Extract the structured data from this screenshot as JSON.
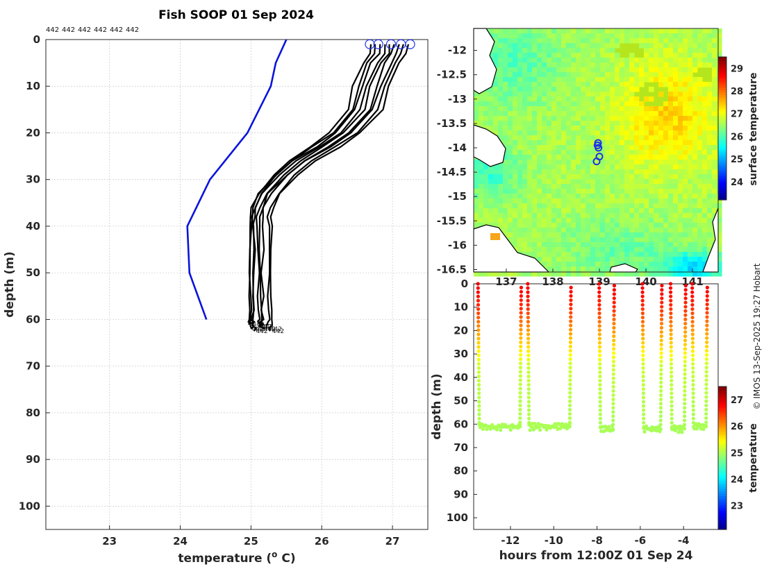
{
  "figure": {
    "title": "Fish SOOP 01 Sep 2024",
    "credit": "© IMOS 13-Sep-2025 19:27 Hobart",
    "colors": {
      "profile": "#000000",
      "climatology": "#0a14dc",
      "marker": "#1e32e6"
    }
  },
  "chart_data": [
    {
      "name": "temperature-profiles",
      "type": "line",
      "title": "Fish SOOP 01 Sep 2024",
      "xlabel": "temperature (",
      "xlabel_sup": "o",
      "xlabel_end": " C)",
      "ylabel": "depth (m)",
      "xlim": [
        22.1,
        27.5
      ],
      "ylim": [
        105,
        0
      ],
      "xticks": [
        23,
        24,
        25,
        26,
        27
      ],
      "yticks": [
        0,
        10,
        20,
        30,
        40,
        50,
        60,
        70,
        80,
        90,
        100
      ],
      "grid": true,
      "vessel_ids": [
        "442",
        "442",
        "442",
        "442",
        "442",
        "442"
      ],
      "end_label": "442",
      "climatology": {
        "depth": [
          0,
          5,
          10,
          20,
          30,
          40,
          50,
          60
        ],
        "temperature": [
          25.5,
          25.35,
          25.28,
          24.95,
          24.42,
          24.1,
          24.13,
          24.37
        ]
      },
      "profile_shape": {
        "depth": [
          1,
          3,
          5,
          10,
          15,
          20,
          23,
          26,
          29,
          33,
          36,
          38,
          40,
          45,
          50,
          55,
          58,
          60
        ],
        "temperature": [
          27.1,
          27.05,
          26.95,
          26.8,
          26.7,
          26.4,
          26.1,
          25.75,
          25.5,
          25.25,
          25.15,
          25.12,
          25.12,
          25.12,
          25.12,
          25.12,
          25.12,
          25.12
        ]
      },
      "profiles": [
        {
          "surface_temp": 27.25,
          "bottom_temp": 25.28,
          "max_depth": 62.5
        },
        {
          "surface_temp": 27.18,
          "bottom_temp": 25.25,
          "max_depth": 62.0
        },
        {
          "surface_temp": 27.12,
          "bottom_temp": 25.16,
          "max_depth": 62.0
        },
        {
          "surface_temp": 27.05,
          "bottom_temp": 25.13,
          "max_depth": 61.5
        },
        {
          "surface_temp": 26.98,
          "bottom_temp": 25.1,
          "max_depth": 61.5
        },
        {
          "surface_temp": 26.92,
          "bottom_temp": 25.05,
          "max_depth": 62.5
        },
        {
          "surface_temp": 26.85,
          "bottom_temp": 25.02,
          "max_depth": 62.0
        },
        {
          "surface_temp": 26.78,
          "bottom_temp": 25.0,
          "max_depth": 61.0
        },
        {
          "surface_temp": 26.72,
          "bottom_temp": 24.99,
          "max_depth": 62.0
        }
      ],
      "surface_markers_temp": [
        26.68,
        26.8,
        26.98,
        27.12,
        27.25
      ]
    },
    {
      "name": "sst-map",
      "type": "heatmap",
      "colorbar_label": "surface temperature",
      "xticks": [
        137,
        138,
        139,
        140,
        141
      ],
      "xticklabels": [
        "137",
        "138",
        "139",
        "140",
        "141"
      ],
      "yticks": [
        -12,
        -12.5,
        -13,
        -13.5,
        -14,
        -14.5,
        -15,
        -15.5,
        -16,
        -16.5
      ],
      "yticklabels": [
        "-12",
        "-12.5",
        "-13",
        "-13.5",
        "-14",
        "-14.5",
        "-15",
        "-15.5",
        "-16",
        "-16.5"
      ],
      "xlim": [
        136.3,
        141.55
      ],
      "ylim": [
        -16.55,
        -11.55
      ],
      "clim": [
        23.2,
        29.5
      ],
      "colorbar_ticks": [
        24,
        25,
        26,
        27,
        28,
        29
      ],
      "track_points": [
        {
          "lon": 138.97,
          "lat": -13.9
        },
        {
          "lon": 138.98,
          "lat": -14.0
        },
        {
          "lon": 139.0,
          "lat": -14.18
        },
        {
          "lon": 138.94,
          "lat": -14.28
        },
        {
          "lon": 138.96,
          "lat": -13.95
        }
      ]
    },
    {
      "name": "depth-time-section",
      "type": "scatter",
      "xlabel": "hours from 12:00Z 01 Sep 24",
      "ylabel": "depth (m)",
      "colorbar_label": "temperature",
      "xlim": [
        -13.7,
        -2.4
      ],
      "ylim": [
        105,
        0
      ],
      "xticks": [
        -12,
        -10,
        -8,
        -6,
        -4
      ],
      "yticks": [
        0,
        10,
        20,
        30,
        40,
        50,
        60,
        70,
        80,
        90,
        100
      ],
      "clim": [
        22.1,
        27.5
      ],
      "colorbar_ticks": [
        23,
        24,
        25,
        26,
        27
      ],
      "casts": [
        {
          "down": -13.5,
          "up": -11.5,
          "bottom": 61
        },
        {
          "down": -11.2,
          "up": -9.2,
          "bottom": 61
        },
        {
          "down": -7.9,
          "up": -7.2,
          "bottom": 62
        },
        {
          "down": -5.9,
          "up": -5.0,
          "bottom": 62
        },
        {
          "down": -4.6,
          "up": -3.9,
          "bottom": 62
        },
        {
          "down": -3.6,
          "up": -2.9,
          "bottom": 61
        }
      ]
    }
  ]
}
